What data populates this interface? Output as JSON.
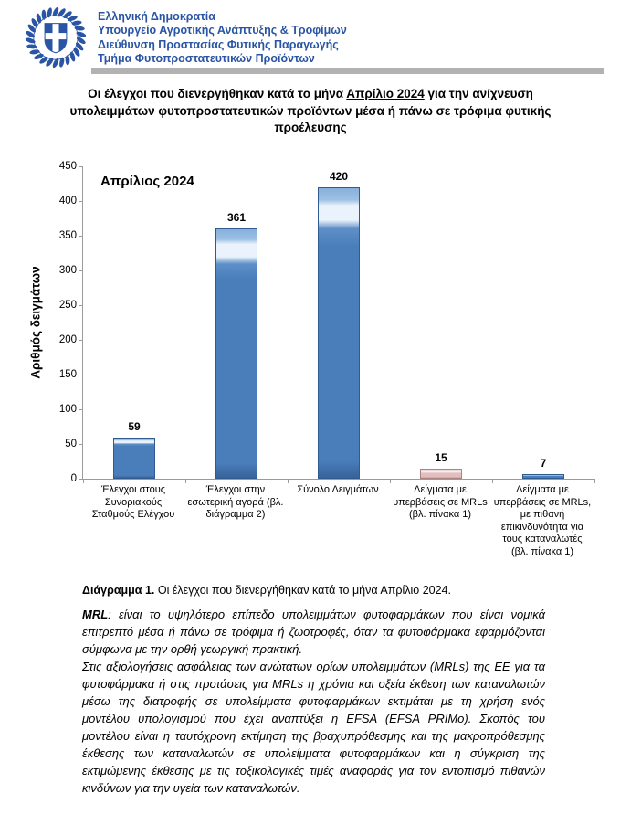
{
  "header": {
    "logo": "greek-coat-of-arms",
    "lines": [
      "Ελληνική Δημοκρατία",
      "Υπουργείο Αγροτικής Ανάπτυξης & Τροφίμων",
      "Διεύθυνση Προστασίας Φυτικής Παραγωγής",
      "Τμήμα Φυτοπροστατευτικών Προϊόντων"
    ],
    "text_color": "#2a55a4",
    "separator_color": "#b2b2b2"
  },
  "title": {
    "part1": "Οι έλεγχοι που διενεργήθηκαν κατά το μήνα ",
    "underlined": "Απρίλιο 2024",
    "part2": " για την ανίχνευση υπολειμμάτων φυτοπροστατευτικών προϊόντων μέσα ή πάνω σε τρόφιμα φυτικής προέλευσης"
  },
  "chart_data": {
    "type": "bar",
    "title": "Απρίλιος 2024",
    "xlabel": "",
    "ylabel": "Αριθμός δειγμάτων",
    "ylim": [
      0,
      450
    ],
    "ytick_step": 50,
    "grid": false,
    "legend_position": "none",
    "categories": [
      "Έλεγχοι στους Συνοριακούς Σταθμούς Ελέγχου",
      "Έλεγχοι στην εσωτερική αγορά (βλ. διάγραμμα 2)",
      "Σύνολο Δειγμάτων",
      "Δείγματα με υπερβάσεις σε MRLs (βλ. πίνακα 1)",
      "Δείγματα με υπερβάσεις σε MRLs, με πιθανή επικινδυνότητα για τους καταναλωτές (βλ. πίνακα 1)"
    ],
    "values": [
      59,
      361,
      420,
      15,
      7
    ],
    "point_styles": [
      "blue",
      "blue",
      "blue",
      "pink",
      "blue"
    ],
    "colors": {
      "blue": "#4a7ebb",
      "pink": "#e3bebe"
    }
  },
  "caption": {
    "label": "Διάγραμμα 1.",
    "text": " Οι έλεγχοι που διενεργήθηκαν κατά το μήνα Απρίλιο 2024."
  },
  "note": {
    "term": "MRL",
    "after_term": ": είναι το υψηλότερο επίπεδο υπολειμμάτων φυτοφαρμάκων που είναι νομικά επιτρεπτό μέσα ή πάνω σε τρόφιμα ή ζωοτροφές, όταν τα φυτοφάρμακα εφαρμόζονται σύμφωνα με την ορθή γεωργική πρακτική.",
    "para2": "Στις αξιολογήσεις ασφάλειας των ανώτατων ορίων υπολειμμάτων (MRLs) της ΕΕ για τα φυτοφάρμακα ή στις προτάσεις για MRLs η χρόνια και οξεία έκθεση των καταναλωτών μέσω της διατροφής σε υπολείμματα φυτοφαρμάκων εκτιμάται με τη χρήση ενός μοντέλου υπολογισμού που έχει αναπτύξει η EFSA (EFSA PRIMo). Σκοπός του μοντέλου είναι η ταυτόχρονη εκτίμηση της βραχυπρόθεσμης και της μακροπρόθεσμης έκθεσης των καταναλωτών σε υπολείμματα φυτοφαρμάκων και η σύγκριση της εκτιμώμενης έκθεσης με τις τοξικολογικές τιμές αναφοράς για τον εντοπισμό πιθανών κινδύνων για την υγεία των καταναλωτών."
  }
}
